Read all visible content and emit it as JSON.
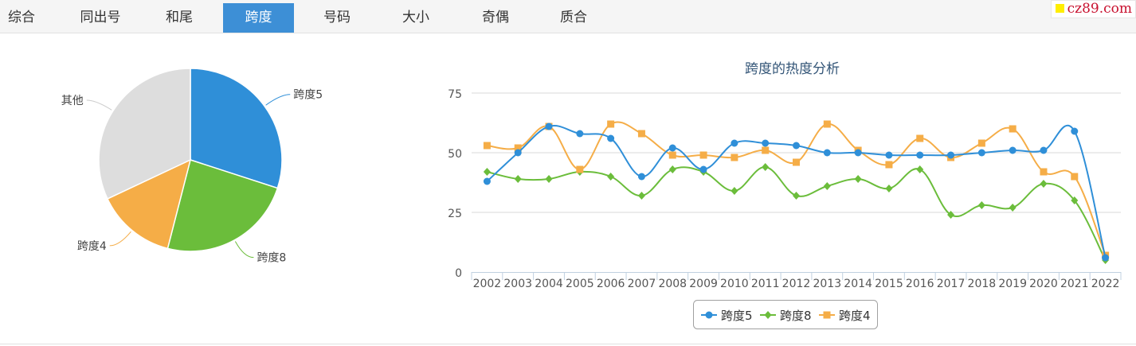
{
  "tabs": [
    {
      "label": "综合"
    },
    {
      "label": "同出号"
    },
    {
      "label": "和尾"
    },
    {
      "label": "跨度",
      "active": true
    },
    {
      "label": "号码"
    },
    {
      "label": "大小"
    },
    {
      "label": "奇偶"
    },
    {
      "label": "质合"
    }
  ],
  "logo": {
    "text": "cz89.com"
  },
  "colors": {
    "span5": "#2f8fd8",
    "span8": "#6bbd3b",
    "span4": "#f5ad47",
    "other": "#dddddd",
    "tab_active": "#3d8fd6"
  },
  "chart_data": [
    {
      "type": "pie",
      "slices": [
        {
          "label": "跨度5",
          "value": 30,
          "color": "#2f8fd8"
        },
        {
          "label": "跨度8",
          "value": 24,
          "color": "#6bbd3b"
        },
        {
          "label": "跨度4",
          "value": 14,
          "color": "#f5ad47"
        },
        {
          "label": "其他",
          "value": 32,
          "color": "#dddddd"
        }
      ]
    },
    {
      "type": "line",
      "title": "跨度的热度分析",
      "x": [
        "2002",
        "2003",
        "2004",
        "2005",
        "2006",
        "2007",
        "2008",
        "2009",
        "2010",
        "2011",
        "2012",
        "2013",
        "2014",
        "2015",
        "2016",
        "2017",
        "2018",
        "2019",
        "2020",
        "2021",
        "2022"
      ],
      "ylim": [
        0,
        75
      ],
      "yticks": [
        0,
        25,
        50,
        75
      ],
      "grid": true,
      "legend": "bottom-center",
      "series": [
        {
          "name": "跨度5",
          "marker": "circle",
          "color": "#2f8fd8",
          "values": [
            38,
            50,
            61,
            58,
            56,
            40,
            52,
            43,
            54,
            54,
            53,
            50,
            50,
            49,
            49,
            49,
            50,
            51,
            51,
            59,
            6
          ]
        },
        {
          "name": "跨度8",
          "marker": "diamond",
          "color": "#6bbd3b",
          "values": [
            42,
            39,
            39,
            42,
            40,
            32,
            43,
            42,
            34,
            44,
            32,
            36,
            39,
            35,
            43,
            24,
            28,
            27,
            37,
            30,
            5
          ]
        },
        {
          "name": "跨度4",
          "marker": "square",
          "color": "#f5ad47",
          "values": [
            53,
            52,
            61,
            43,
            62,
            58,
            49,
            49,
            48,
            51,
            46,
            62,
            51,
            45,
            56,
            48,
            54,
            60,
            42,
            40,
            7
          ]
        }
      ]
    }
  ]
}
